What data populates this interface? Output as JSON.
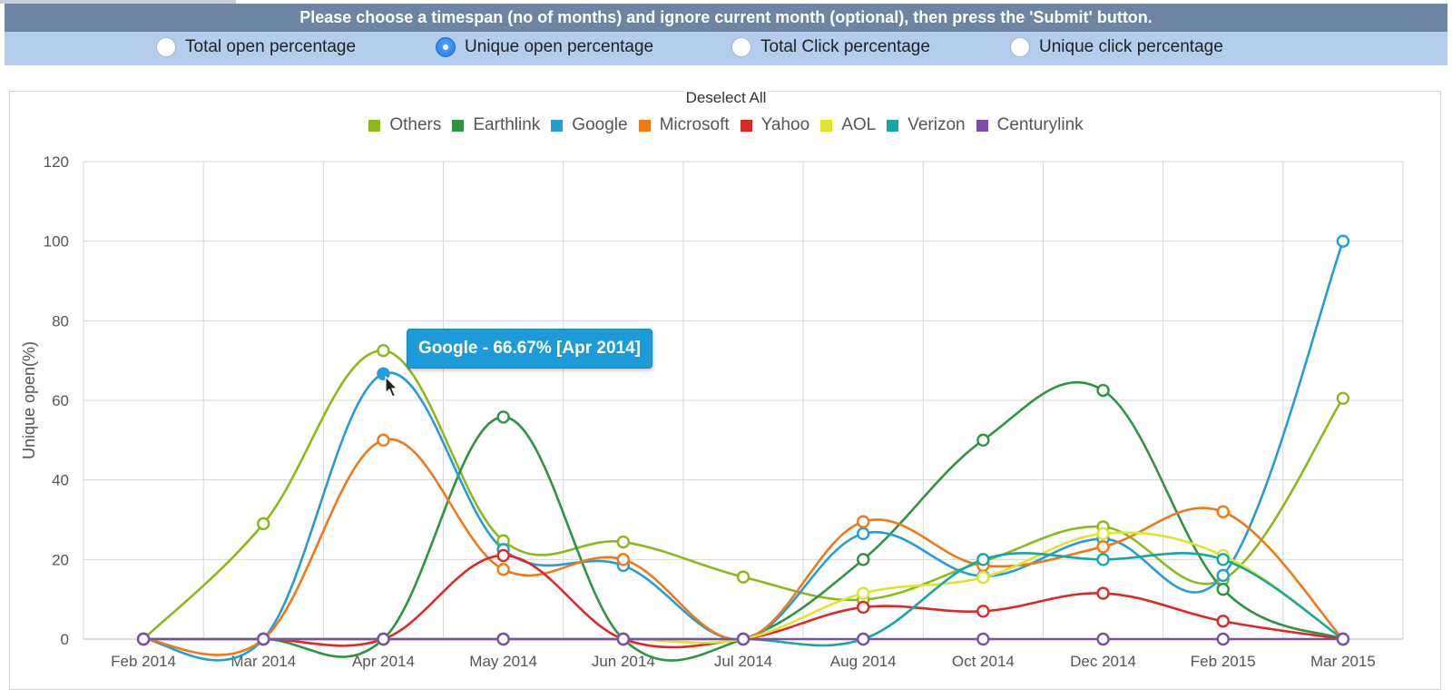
{
  "header": {
    "instruction": "Please choose a timespan (no of months) and ignore current month (optional), then press the 'Submit' button."
  },
  "metrics": {
    "selected": "unique_open",
    "options": [
      {
        "id": "total_open",
        "label": "Total open percentage",
        "checked": false
      },
      {
        "id": "unique_open",
        "label": "Unique open percentage",
        "checked": true
      },
      {
        "id": "total_click",
        "label": "Total Click percentage",
        "checked": false
      },
      {
        "id": "unique_click",
        "label": "Unique click percentage",
        "checked": false
      }
    ]
  },
  "deselect_label": "Deselect All",
  "tooltip": {
    "text": "Google - 66.67% [Apr 2014]"
  },
  "chart_data": {
    "type": "line",
    "title": "",
    "xlabel": "",
    "ylabel": "Unique open(%)",
    "ylim": [
      0,
      120
    ],
    "yticks": [
      0,
      20,
      40,
      60,
      80,
      100,
      120
    ],
    "grid": true,
    "smooth": true,
    "legend_position": "top-center",
    "categories": [
      "Feb 2014",
      "Mar 2014",
      "Apr 2014",
      "May 2014",
      "Jun 2014",
      "Jul 2014",
      "Aug 2014",
      "Oct 2014",
      "Dec 2014",
      "Feb 2015",
      "Mar 2015"
    ],
    "series": [
      {
        "name": "Others",
        "color": "#8db81a",
        "values": [
          0,
          29,
          72.5,
          24.7,
          24.4,
          15.6,
          9.9,
          19.5,
          28.2,
          15,
          60.5
        ]
      },
      {
        "name": "Earthlink",
        "color": "#2e9444",
        "values": [
          0,
          0,
          0,
          55.8,
          0,
          0,
          20,
          50,
          62.5,
          12.5,
          0
        ]
      },
      {
        "name": "Google",
        "color": "#239dd8",
        "values": [
          0,
          0,
          66.67,
          22.5,
          18.5,
          0,
          26.5,
          15.8,
          25.2,
          16,
          100
        ]
      },
      {
        "name": "Microsoft",
        "color": "#f07817",
        "values": [
          0,
          0,
          50,
          17.5,
          20,
          0,
          29.5,
          18.5,
          23.2,
          32,
          0
        ]
      },
      {
        "name": "Yahoo",
        "color": "#e02727",
        "values": [
          0,
          0,
          0,
          21,
          0,
          0,
          8,
          7,
          11.5,
          4.5,
          0
        ]
      },
      {
        "name": "AOL",
        "color": "#dfe52c",
        "values": [
          0,
          0,
          0,
          0,
          0,
          0,
          11.5,
          15.5,
          26.5,
          21,
          0
        ]
      },
      {
        "name": "Verizon",
        "color": "#16a6a8",
        "values": [
          0,
          0,
          0,
          0,
          0,
          0,
          0,
          20,
          20,
          20,
          0
        ]
      },
      {
        "name": "Centurylink",
        "color": "#7b4fa8",
        "values": [
          0,
          0,
          0,
          0,
          0,
          0,
          0,
          0,
          0,
          0,
          0
        ]
      }
    ]
  }
}
